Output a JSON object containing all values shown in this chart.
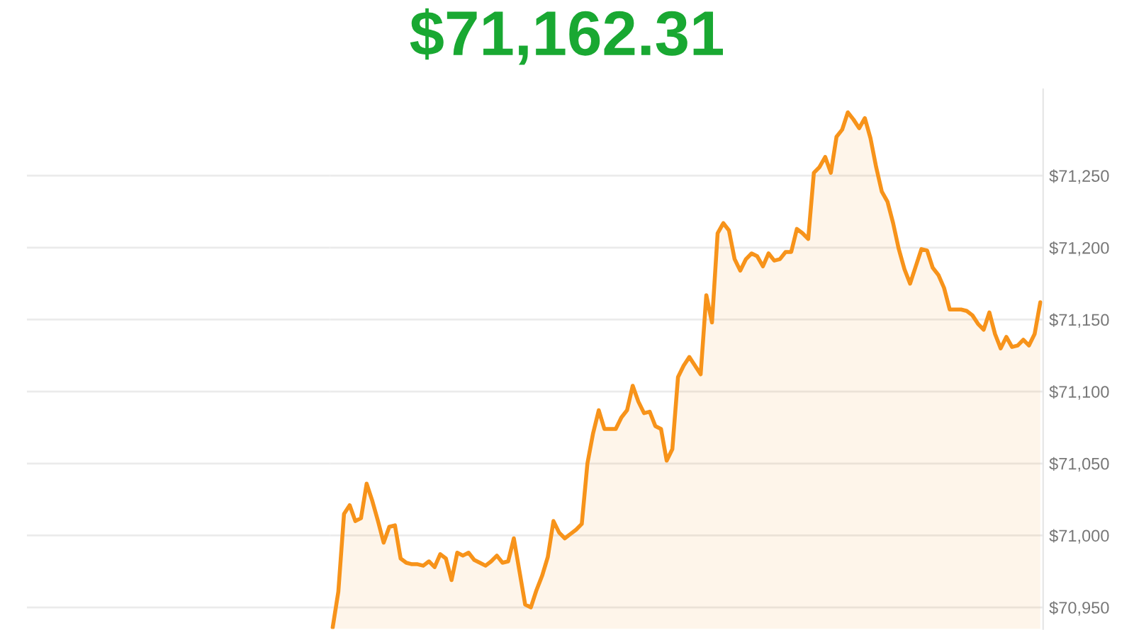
{
  "chart_data": {
    "type": "area",
    "title": "$71,162.31",
    "categories": [
      null,
      null,
      null,
      null,
      null,
      null,
      null,
      null,
      null,
      null,
      null,
      null,
      null,
      null,
      null,
      null,
      null,
      null,
      null,
      null,
      null,
      null,
      null,
      null,
      null,
      null,
      null,
      null,
      null,
      null,
      null,
      null,
      null,
      null,
      null,
      null,
      null,
      null,
      null,
      null,
      null,
      null,
      null,
      null,
      null,
      null,
      null,
      null,
      null,
      null,
      null,
      null,
      null,
      null,
      null,
      null,
      null,
      null,
      null,
      null,
      null,
      null,
      null,
      null,
      null,
      null,
      null,
      null,
      null,
      null,
      null,
      null,
      null,
      null,
      null,
      null,
      null,
      null,
      null,
      null,
      null,
      null,
      null,
      null,
      null,
      null,
      null,
      null,
      null,
      null,
      null,
      null,
      null,
      null,
      null,
      null,
      null,
      null,
      null,
      null,
      null,
      null,
      null,
      null,
      null,
      null,
      null,
      null,
      null,
      null,
      null,
      null,
      null,
      null,
      null,
      null,
      null,
      null,
      null,
      null,
      null,
      null,
      null,
      null,
      null,
      null
    ],
    "series": [
      {
        "color": "#f7931a",
        "values": [
          70936,
          70961,
          71015,
          71021,
          71010,
          71012,
          71036,
          71024,
          71010,
          70995,
          71006,
          71007,
          70984,
          70981,
          70980,
          70980,
          70979,
          70982,
          70978,
          70987,
          70984,
          70969,
          70988,
          70986,
          70988,
          70983,
          70981,
          70979,
          70982,
          70986,
          70981,
          70982,
          70998,
          70975,
          70952,
          70950,
          70962,
          70972,
          70985,
          71010,
          71002,
          70998,
          71001,
          71004,
          71008,
          71050,
          71071,
          71087,
          71074,
          71074,
          71074,
          71082,
          71087,
          71104,
          71093,
          71085,
          71086,
          71076,
          71074,
          71052,
          71060,
          71110,
          71118,
          71124,
          71118,
          71112,
          71167,
          71148,
          71210,
          71217,
          71212,
          71192,
          71184,
          71192,
          71196,
          71194,
          71187,
          71196,
          71191,
          71192,
          71197,
          71197,
          71213,
          71210,
          71206,
          71252,
          71256,
          71263,
          71252,
          71277,
          71282,
          71294,
          71289,
          71283,
          71290,
          71276,
          71256,
          71239,
          71232,
          71217,
          71199,
          71185,
          71175,
          71187,
          71199,
          71198,
          71186,
          71181,
          71172,
          71157,
          71157,
          71157,
          71156,
          71153,
          71147,
          71143,
          71155,
          71140,
          71130,
          71138,
          71131,
          71132,
          71136,
          71132,
          71140,
          71162
        ]
      }
    ],
    "ylim": [
      70935,
      71310
    ],
    "yticks": [
      {
        "value": 70950,
        "label": "$70,950"
      },
      {
        "value": 71000,
        "label": "$71,000"
      },
      {
        "value": 71050,
        "label": "$71,050"
      },
      {
        "value": 71100,
        "label": "$71,100"
      },
      {
        "value": 71150,
        "label": "$71,150"
      },
      {
        "value": 71200,
        "label": "$71,200"
      },
      {
        "value": 71250,
        "label": "$71,250"
      }
    ],
    "grid": "y"
  }
}
